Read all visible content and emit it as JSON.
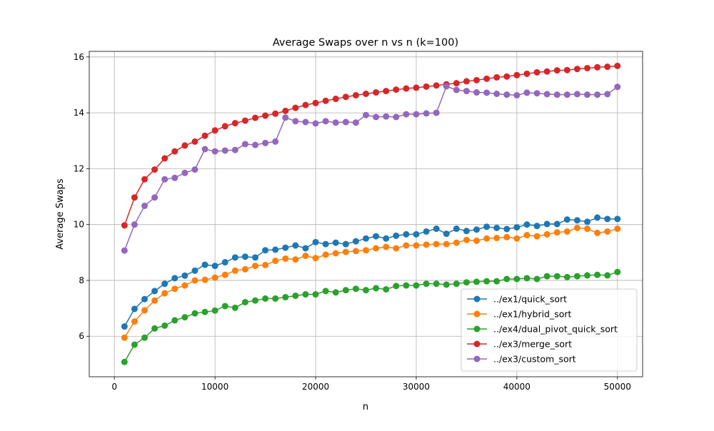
{
  "chart_data": {
    "type": "line",
    "title": "Average Swaps over n vs n (k=100)",
    "xlabel": "n",
    "ylabel": "Average Swaps",
    "xlim": [
      -2500,
      52500
    ],
    "ylim": [
      4.55,
      16.2
    ],
    "xticks": [
      0,
      10000,
      20000,
      30000,
      40000,
      50000
    ],
    "xtick_labels": [
      "0",
      "10000",
      "20000",
      "30000",
      "40000",
      "50000"
    ],
    "yticks": [
      6,
      8,
      10,
      12,
      14,
      16
    ],
    "ytick_labels": [
      "6",
      "8",
      "10",
      "12",
      "14",
      "16"
    ],
    "grid": true,
    "legend_position": "lower-right",
    "x": [
      1000,
      2000,
      3000,
      4000,
      5000,
      6000,
      7000,
      8000,
      9000,
      10000,
      11000,
      12000,
      13000,
      14000,
      15000,
      16000,
      17000,
      18000,
      19000,
      20000,
      21000,
      22000,
      23000,
      24000,
      25000,
      26000,
      27000,
      28000,
      29000,
      30000,
      31000,
      32000,
      33000,
      34000,
      35000,
      36000,
      37000,
      38000,
      39000,
      40000,
      41000,
      42000,
      43000,
      44000,
      45000,
      46000,
      47000,
      48000,
      49000,
      50000
    ],
    "series": [
      {
        "name": "../ex1/quick_sort",
        "color": "#1f77b4",
        "values": [
          6.35,
          6.98,
          7.33,
          7.62,
          7.88,
          8.08,
          8.17,
          8.35,
          8.56,
          8.52,
          8.65,
          8.82,
          8.85,
          8.82,
          9.08,
          9.1,
          9.17,
          9.25,
          9.15,
          9.37,
          9.3,
          9.35,
          9.3,
          9.4,
          9.5,
          9.58,
          9.5,
          9.6,
          9.65,
          9.65,
          9.75,
          9.85,
          9.67,
          9.85,
          9.77,
          9.82,
          9.92,
          9.88,
          9.84,
          9.9,
          10.0,
          9.95,
          10.02,
          10.02,
          10.18,
          10.15,
          10.1,
          10.25,
          10.2,
          10.2
        ]
      },
      {
        "name": "../ex1/hybrid_sort",
        "color": "#ff7f0e",
        "values": [
          5.95,
          6.53,
          6.93,
          7.28,
          7.54,
          7.7,
          7.82,
          8.0,
          8.02,
          8.1,
          8.2,
          8.35,
          8.4,
          8.52,
          8.55,
          8.7,
          8.78,
          8.75,
          8.88,
          8.8,
          8.92,
          8.97,
          9.02,
          9.05,
          9.08,
          9.15,
          9.2,
          9.15,
          9.25,
          9.25,
          9.28,
          9.3,
          9.3,
          9.35,
          9.45,
          9.42,
          9.5,
          9.52,
          9.55,
          9.5,
          9.62,
          9.58,
          9.65,
          9.72,
          9.75,
          9.88,
          9.85,
          9.7,
          9.75,
          9.85
        ]
      },
      {
        "name": "../ex4/dual_pivot_quick_sort",
        "color": "#2ca02c",
        "values": [
          5.08,
          5.7,
          5.95,
          6.28,
          6.38,
          6.57,
          6.68,
          6.82,
          6.87,
          6.92,
          7.08,
          7.02,
          7.22,
          7.28,
          7.35,
          7.35,
          7.4,
          7.45,
          7.5,
          7.5,
          7.62,
          7.57,
          7.65,
          7.7,
          7.65,
          7.72,
          7.68,
          7.8,
          7.82,
          7.82,
          7.88,
          7.88,
          7.85,
          7.88,
          7.93,
          7.95,
          7.97,
          7.97,
          8.05,
          8.05,
          8.08,
          8.05,
          8.15,
          8.15,
          8.12,
          8.15,
          8.18,
          8.2,
          8.18,
          8.3
        ]
      },
      {
        "name": "../ex3/merge_sort",
        "color": "#d62728",
        "values": [
          9.97,
          10.97,
          11.62,
          11.97,
          12.37,
          12.62,
          12.83,
          12.97,
          13.18,
          13.37,
          13.52,
          13.63,
          13.72,
          13.82,
          13.9,
          13.97,
          14.07,
          14.18,
          14.28,
          14.35,
          14.43,
          14.5,
          14.57,
          14.63,
          14.68,
          14.73,
          14.78,
          14.83,
          14.87,
          14.9,
          14.94,
          14.98,
          15.02,
          15.06,
          15.13,
          15.17,
          15.22,
          15.27,
          15.3,
          15.35,
          15.4,
          15.45,
          15.48,
          15.52,
          15.53,
          15.57,
          15.6,
          15.63,
          15.65,
          15.68
        ]
      },
      {
        "name": "../ex3/custom_sort",
        "color": "#9467bd",
        "values": [
          9.07,
          10.0,
          10.67,
          10.97,
          11.62,
          11.67,
          11.85,
          11.97,
          12.7,
          12.62,
          12.65,
          12.67,
          12.88,
          12.85,
          12.92,
          12.97,
          13.83,
          13.7,
          13.67,
          13.62,
          13.7,
          13.65,
          13.67,
          13.65,
          13.92,
          13.85,
          13.87,
          13.85,
          13.95,
          13.95,
          13.98,
          14.0,
          14.95,
          14.82,
          14.78,
          14.73,
          14.72,
          14.68,
          14.65,
          14.63,
          14.72,
          14.7,
          14.67,
          14.65,
          14.65,
          14.67,
          14.65,
          14.65,
          14.67,
          14.93
        ]
      }
    ]
  }
}
